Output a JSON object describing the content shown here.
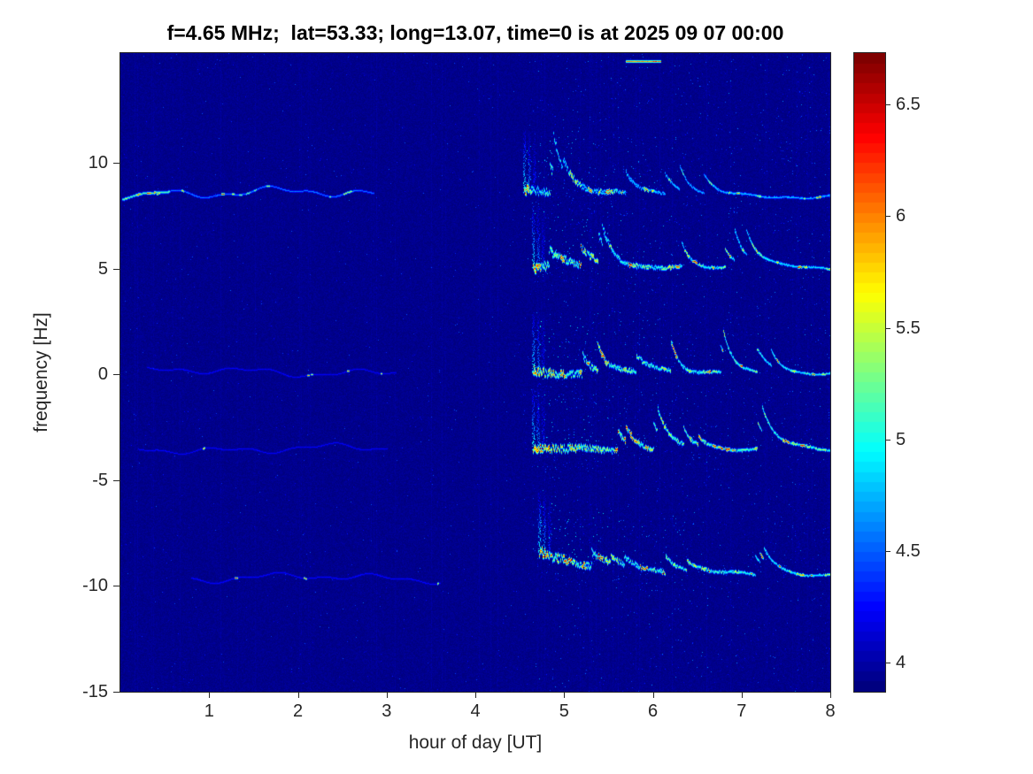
{
  "figure": {
    "background": "#ffffff",
    "axis_color": "#262626"
  },
  "chart_data": {
    "type": "heatmap",
    "title": "f=4.65 MHz;  lat=53.33; long=13.07, time=0 is at 2025 09 07 00:00",
    "xlabel": "hour of day [UT]",
    "ylabel": "frequency [Hz]",
    "xlim": [
      0,
      8
    ],
    "ylim": [
      -15,
      15.2
    ],
    "xticks": [
      1,
      2,
      3,
      4,
      5,
      6,
      7,
      8
    ],
    "yticks": [
      -15,
      -10,
      -5,
      0,
      5,
      10
    ],
    "grid": false,
    "colormap": "jet",
    "legend": "none",
    "colorbar": {
      "position": "right",
      "min": 3.87,
      "max": 6.73,
      "ticks": [
        4,
        4.5,
        5,
        5.5,
        6,
        6.5
      ],
      "levels": 64
    },
    "background_level": 3.9,
    "traces": [
      {
        "freq": 8.4,
        "t0": 0.02,
        "t1": 0.55,
        "level": 5.1,
        "hot": 0.3,
        "wiggle": 0.15,
        "thickness": 1.8,
        "drift": 0.3,
        "seed": 11,
        "note": "bright start of pre-dawn Doppler trace near 8.5 Hz"
      },
      {
        "freq": 8.65,
        "t0": 0.4,
        "t1": 2.85,
        "level": 4.55,
        "hot": 0.05,
        "wiggle": 0.3,
        "thickness": 1.3,
        "drift": -0.1,
        "seed": 12,
        "note": "faint wavy pre-dawn trace near 8.5 Hz fading by hour 2.8"
      },
      {
        "freq": 0.15,
        "t0": 0.3,
        "t1": 3.1,
        "level": 4.2,
        "hot": 0.01,
        "wiggle": 0.25,
        "thickness": 1.0,
        "seed": 13,
        "note": "very faint trace near 0 Hz"
      },
      {
        "freq": -3.5,
        "t0": 0.2,
        "t1": 3.0,
        "level": 4.2,
        "hot": 0.01,
        "wiggle": 0.25,
        "thickness": 1.0,
        "seed": 14,
        "note": "very faint trace near -3.5 Hz"
      },
      {
        "freq": -9.6,
        "t0": 0.8,
        "t1": 3.6,
        "level": 4.22,
        "hot": 0.01,
        "wiggle": 0.25,
        "thickness": 1.0,
        "seed": 15,
        "note": "very faint trace near -9.5 Hz"
      },
      {
        "freq": 8.6,
        "t0": 4.55,
        "t1": 8.0,
        "level": 4.7,
        "hot": 0.1,
        "wiggle": 0.12,
        "thickness": 1.2,
        "drift": -0.2,
        "onset": true,
        "onset_len": 1.1,
        "onset_amp": 1.3,
        "plume": true,
        "seed": 21,
        "note": "active trace near 8.5 Hz starting ~04:40 UT, settles to 8.4 Hz"
      },
      {
        "freq": 5.05,
        "t0": 4.65,
        "t1": 8.0,
        "level": 4.85,
        "hot": 0.16,
        "wiggle": 0.1,
        "thickness": 1.4,
        "onset": true,
        "onset_len": 1.3,
        "onset_amp": 1.5,
        "plume": true,
        "seed": 22,
        "note": "active trace near 5 Hz with fishhook excursions 4.7-6.5 UT"
      },
      {
        "freq": 0.05,
        "t0": 4.65,
        "t1": 8.0,
        "level": 4.9,
        "hot": 0.18,
        "wiggle": 0.1,
        "thickness": 1.4,
        "onset": true,
        "onset_len": 1.4,
        "onset_amp": 1.6,
        "plume": true,
        "seed": 23,
        "note": "active trace near 0 Hz, red-hot onset at ~4.7 UT"
      },
      {
        "freq": -3.55,
        "t0": 4.65,
        "t1": 8.0,
        "level": 4.95,
        "hot": 0.22,
        "wiggle": 0.1,
        "thickness": 1.5,
        "onset": true,
        "onset_len": 1.5,
        "onset_amp": 1.4,
        "plume": true,
        "seed": 24,
        "note": "bright active trace near -3.5 Hz with yellow dashes to 8 UT"
      },
      {
        "freq": -8.4,
        "t0": 4.72,
        "t1": 8.0,
        "level": 4.9,
        "hot": 0.2,
        "wiggle": 0.12,
        "thickness": 1.4,
        "drift": -1.15,
        "settle": true,
        "onset": true,
        "onset_len": 1.4,
        "onset_amp": 0.9,
        "plume": true,
        "seed": 25,
        "note": "active trace descending from -8.4 Hz to about -9.5 Hz"
      },
      {
        "freq": 14.8,
        "t0": 5.7,
        "t1": 6.08,
        "level": 5.9,
        "hot": 0.6,
        "wiggle": 0.1,
        "thickness": 1.6,
        "seed": 26,
        "note": "short red streak at top edge near 5.9 UT"
      }
    ]
  }
}
